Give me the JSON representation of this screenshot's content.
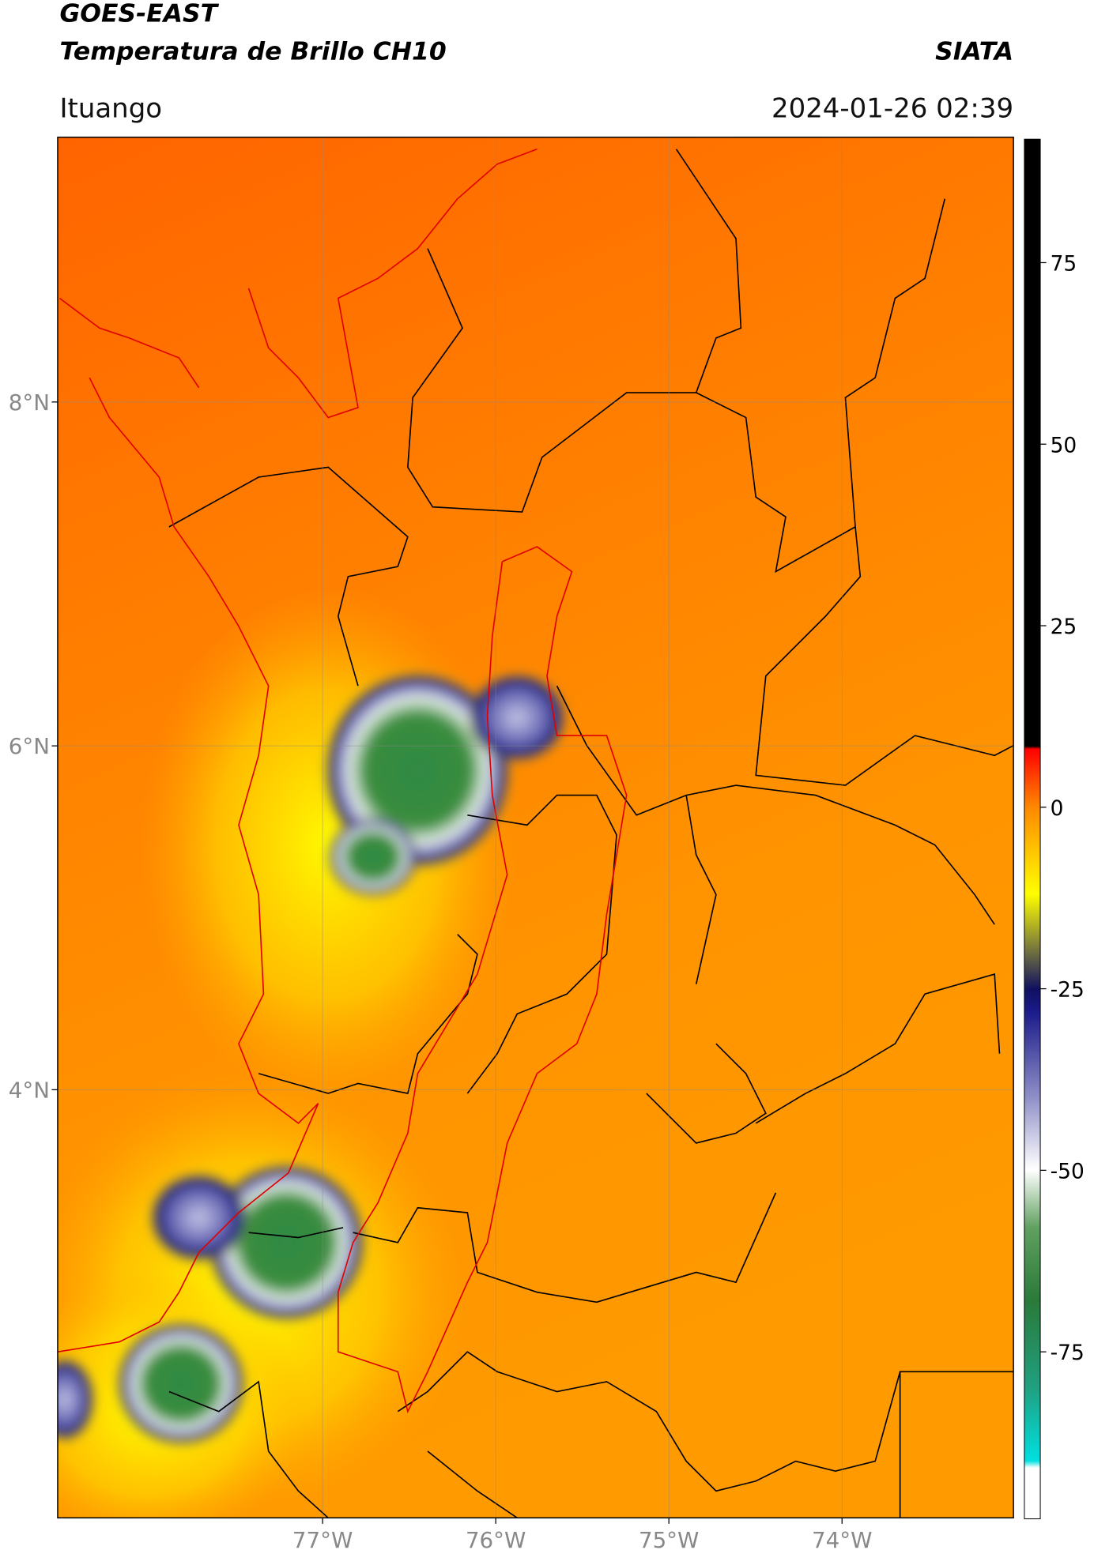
{
  "header": {
    "title": "GOES-EAST",
    "subtitle": "Temperatura de Brillo CH10",
    "source": "SIATA",
    "location": "Ituango",
    "timestamp": "2024-01-26 02:39"
  },
  "map": {
    "xlim": [
      -78.53,
      -73.01
    ],
    "ylim": [
      1.51,
      9.54
    ],
    "xticks": [
      {
        "value": -77,
        "label": "77°W"
      },
      {
        "value": -76,
        "label": "76°W"
      },
      {
        "value": -75,
        "label": "75°W"
      },
      {
        "value": -74,
        "label": "74°W"
      }
    ],
    "yticks": [
      {
        "value": 8,
        "label": "8°N"
      },
      {
        "value": 6,
        "label": "6°N"
      },
      {
        "value": 4,
        "label": "4°N"
      }
    ],
    "grid": true
  },
  "colorbar": {
    "lim": [
      -98,
      92
    ],
    "ticks": [
      75,
      50,
      25,
      0,
      -25,
      -50,
      -75
    ]
  }
}
